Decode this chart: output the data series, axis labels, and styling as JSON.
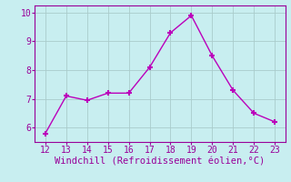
{
  "x": [
    12,
    13,
    14,
    15,
    16,
    17,
    18,
    19,
    20,
    21,
    22,
    23
  ],
  "y": [
    5.8,
    7.1,
    6.95,
    7.2,
    7.2,
    8.1,
    9.3,
    9.9,
    8.5,
    7.3,
    6.5,
    6.2
  ],
  "xlabel": "Windchill (Refroidissement éolien,°C)",
  "xlim": [
    11.5,
    23.5
  ],
  "ylim": [
    5.5,
    10.25
  ],
  "yticks": [
    6,
    7,
    8,
    9,
    10
  ],
  "xticks": [
    12,
    13,
    14,
    15,
    16,
    17,
    18,
    19,
    20,
    21,
    22,
    23
  ],
  "line_color": "#bb00bb",
  "marker": "+",
  "bg_color": "#c8eef0",
  "grid_color": "#aacccc",
  "text_color": "#990099",
  "font_family": "monospace",
  "tick_fontsize": 7,
  "xlabel_fontsize": 7.5
}
